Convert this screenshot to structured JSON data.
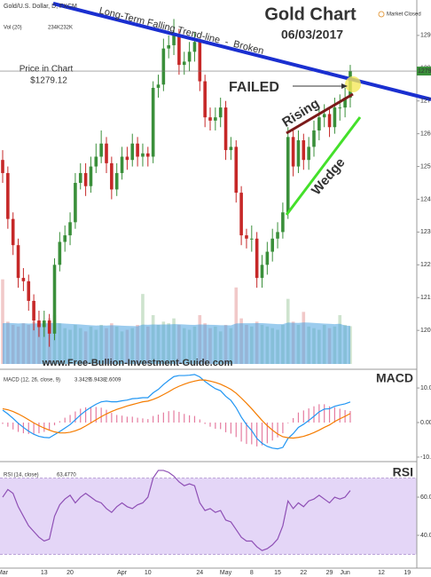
{
  "chart_data": [
    {
      "type": "candlestick",
      "title": "Gold/U.S. Dollar, D, FXCM",
      "status": "Market Closed",
      "categories": [
        "Mar",
        null,
        null,
        null,
        null,
        null,
        null,
        null,
        "13",
        null,
        null,
        null,
        null,
        "20",
        null,
        null,
        null,
        null,
        null,
        null,
        null,
        null,
        null,
        "Apr",
        null,
        null,
        null,
        null,
        "10",
        null,
        null,
        null,
        null,
        null,
        null,
        null,
        null,
        null,
        "24",
        null,
        null,
        null,
        null,
        "May",
        null,
        null,
        null,
        null,
        "8",
        null,
        null,
        null,
        null,
        "15",
        null,
        null,
        null,
        null,
        "22",
        null,
        null,
        null,
        null,
        "29",
        null,
        null,
        "Jun",
        null,
        null,
        null,
        null,
        null,
        null,
        "12",
        null,
        null,
        null,
        null,
        "19",
        null
      ],
      "open": [
        1252,
        1248,
        1234,
        1226,
        1216,
        1215,
        1209,
        1203,
        1201,
        1203,
        1199,
        1220,
        1227,
        1229,
        1233,
        1245,
        1248,
        1244,
        1250,
        1253,
        1257,
        1251,
        1243,
        1248,
        1253,
        1252,
        1257,
        1253,
        1254,
        1253,
        1274,
        1275,
        1286,
        1287,
        1290,
        1281,
        1282,
        1285,
        1288,
        1276,
        1265,
        1264,
        1265,
        1268,
        1255,
        1256,
        1242,
        1229,
        1228,
        1228,
        1216,
        1220,
        1224,
        1228,
        1230,
        1236,
        1259,
        1250,
        1258,
        1252,
        1256,
        1261,
        1265,
        1266,
        1262,
        1268,
        1268,
        1271,
        null,
        null,
        null,
        null,
        null,
        null,
        null,
        null,
        null,
        null,
        null,
        null
      ],
      "high": [
        1255,
        1250,
        1236,
        1228,
        1219,
        1217,
        1211,
        1206,
        1206,
        1205,
        1222,
        1230,
        1232,
        1236,
        1248,
        1251,
        1251,
        1253,
        1257,
        1261,
        1259,
        1253,
        1251,
        1256,
        1256,
        1260,
        1259,
        1257,
        1256,
        1276,
        1278,
        1289,
        1290,
        1295,
        1292,
        1285,
        1288,
        1291,
        1289,
        1278,
        1268,
        1268,
        1271,
        1270,
        1259,
        1258,
        1244,
        1231,
        1232,
        1230,
        1223,
        1227,
        1231,
        1233,
        1239,
        1262,
        1261,
        1261,
        1260,
        1259,
        1264,
        1268,
        1269,
        1268,
        1271,
        1272,
        1274,
        1281,
        null,
        null,
        null,
        null,
        null,
        null,
        null,
        null,
        null,
        null,
        null,
        null
      ],
      "low": [
        1245,
        1231,
        1223,
        1213,
        1212,
        1206,
        1200,
        1198,
        1198,
        1195,
        1197,
        1218,
        1224,
        1226,
        1231,
        1243,
        1241,
        1242,
        1248,
        1251,
        1248,
        1240,
        1241,
        1246,
        1249,
        1250,
        1250,
        1250,
        1250,
        1251,
        1271,
        1273,
        1283,
        1284,
        1278,
        1278,
        1279,
        1282,
        1273,
        1262,
        1261,
        1261,
        1262,
        1252,
        1252,
        1239,
        1226,
        1225,
        1224,
        1213,
        1213,
        1217,
        1221,
        1225,
        1228,
        1234,
        1247,
        1248,
        1249,
        1249,
        1253,
        1258,
        1262,
        1259,
        1260,
        1264,
        1265,
        1268,
        null,
        null,
        null,
        null,
        null,
        null,
        null,
        null,
        null,
        null,
        null,
        null
      ],
      "close": [
        1248,
        1234,
        1226,
        1216,
        1215,
        1209,
        1203,
        1201,
        1203,
        1199,
        1220,
        1227,
        1229,
        1233,
        1245,
        1248,
        1244,
        1250,
        1253,
        1257,
        1251,
        1243,
        1248,
        1253,
        1252,
        1257,
        1253,
        1254,
        1253,
        1274,
        1275,
        1286,
        1287,
        1290,
        1281,
        1282,
        1285,
        1288,
        1276,
        1265,
        1264,
        1265,
        1268,
        1255,
        1256,
        1242,
        1229,
        1228,
        1228,
        1216,
        1220,
        1224,
        1228,
        1230,
        1236,
        1259,
        1250,
        1258,
        1252,
        1256,
        1261,
        1265,
        1266,
        1262,
        1268,
        1268,
        1271,
        1279.12,
        null,
        null,
        null,
        null,
        null,
        null,
        null,
        null,
        null,
        null,
        null,
        null
      ],
      "up_color": "#3a8f3a",
      "down_color": "#c62828",
      "ylim": [
        1188.4,
        1300.8
      ],
      "yticks": [
        {
          "value": 1290,
          "label": "1290.00"
        },
        {
          "value": 1280,
          "label": "1280.00"
        },
        {
          "value": 1270,
          "label": "1270.00"
        },
        {
          "value": 1260,
          "label": "1260.00"
        },
        {
          "value": 1250,
          "label": "1250.00"
        },
        {
          "value": 1240,
          "label": "1240.00"
        },
        {
          "value": 1230,
          "label": "1230.00"
        },
        {
          "value": 1220,
          "label": "1220.00"
        },
        {
          "value": 1210,
          "label": "1210.00"
        },
        {
          "value": 1200,
          "label": "1200.00"
        }
      ],
      "grid": false,
      "last_price": 1279.12,
      "last_price_color": "#3a8f3a",
      "volume": [
        520,
        260,
        240,
        230,
        250,
        240,
        260,
        250,
        230,
        280,
        300,
        250,
        220,
        210,
        240,
        220,
        200,
        230,
        210,
        240,
        220,
        250,
        230,
        200,
        210,
        220,
        240,
        430,
        230,
        300,
        240,
        260,
        250,
        280,
        240,
        220,
        210,
        230,
        300,
        250,
        220,
        230,
        200,
        240,
        220,
        470,
        280,
        240,
        230,
        260,
        240,
        230,
        220,
        210,
        240,
        400,
        260,
        240,
        320,
        230,
        220,
        210,
        240,
        220,
        230,
        300,
        240,
        232,
        null,
        null,
        null,
        null,
        null,
        null,
        null,
        null,
        null,
        null,
        null,
        null
      ],
      "volume_ma": [
        250,
        252,
        251,
        249,
        250,
        248,
        249,
        250,
        249,
        251,
        252,
        250,
        248,
        246,
        245,
        243,
        240,
        238,
        236,
        237,
        236,
        238,
        237,
        235,
        234,
        233,
        232,
        242,
        241,
        243,
        242,
        243,
        243,
        245,
        244,
        243,
        241,
        240,
        243,
        242,
        241,
        240,
        238,
        238,
        237,
        249,
        250,
        250,
        250,
        251,
        251,
        249,
        247,
        245,
        245,
        254,
        253,
        252,
        255,
        254,
        252,
        250,
        248,
        247,
        245,
        247,
        236,
        234,
        null,
        null,
        null,
        null,
        null,
        null,
        null,
        null,
        null,
        null,
        null,
        null
      ],
      "volume_lim": [
        0,
        600
      ],
      "volume_ma_color": "#4aa3e0",
      "volume_legend": {
        "name": "Vol (20)",
        "values": [
          234,
          232
        ],
        "value_labels": [
          "234K",
          "232K"
        ]
      },
      "annotations": {
        "chart_title": "Gold Chart",
        "date": "06/03/2017",
        "trend_line": "Long-Term Falling Trend-line  -  Broken",
        "failed": "FAILED",
        "rising": "Rising",
        "wedge": "Wedge",
        "price_note": "Price in Chart",
        "price_note_value": "$1279.12",
        "website": "www.Free-Bullion-Investment-Guide.com"
      }
    },
    {
      "type": "line",
      "name": "MACD (12, 26, close, 9)",
      "panel_label": "MACD",
      "legend_values": [
        3.3429,
        5.9438,
        2.6009
      ],
      "series": [
        {
          "name": "Histogram",
          "style": "histogram",
          "color": "#e57ca0",
          "values": [
            -0.4,
            -1.2,
            -2.0,
            -2.7,
            -3.1,
            -3.3,
            -3.3,
            -3.1,
            -2.7,
            -2.2,
            -0.8,
            0.4,
            1.4,
            2.2,
            3.2,
            4.0,
            4.4,
            4.5,
            4.5,
            4.3,
            3.7,
            2.8,
            2.2,
            2.0,
            1.7,
            1.7,
            1.4,
            1.2,
            1.0,
            1.9,
            2.3,
            2.9,
            3.3,
            3.5,
            3.1,
            2.5,
            2.1,
            1.9,
            0.9,
            -0.4,
            -1.2,
            -1.8,
            -1.9,
            -2.8,
            -3.2,
            -4.2,
            -5.5,
            -6.2,
            -6.3,
            -6.9,
            -6.6,
            -6.0,
            -5.2,
            -4.3,
            -3.1,
            -0.2,
            1.3,
            2.9,
            3.5,
            4.1,
            4.7,
            5.3,
            5.3,
            4.7,
            4.4,
            4.0,
            3.6,
            3.3429,
            null,
            null,
            null,
            null,
            null,
            null,
            null,
            null,
            null,
            null,
            null,
            null
          ]
        },
        {
          "name": "MACD",
          "style": "line",
          "color": "#2196f3",
          "values": [
            3.6,
            2.5,
            1.2,
            -0.2,
            -1.4,
            -2.5,
            -3.4,
            -4.0,
            -4.3,
            -4.4,
            -3.5,
            -2.6,
            -1.6,
            -0.6,
            0.8,
            2.2,
            3.4,
            4.4,
            5.3,
            6.0,
            6.2,
            6.0,
            6.0,
            6.3,
            6.5,
            6.9,
            7.0,
            7.2,
            7.2,
            8.6,
            9.6,
            11.0,
            12.2,
            13.3,
            13.6,
            13.6,
            13.7,
            13.9,
            13.2,
            11.9,
            10.8,
            9.8,
            9.2,
            7.6,
            6.4,
            4.3,
            1.6,
            -0.6,
            -2.3,
            -4.6,
            -6.0,
            -6.9,
            -7.4,
            -7.6,
            -7.2,
            -4.6,
            -3.2,
            -1.4,
            -0.5,
            0.6,
            1.8,
            3.1,
            3.9,
            4.0,
            4.7,
            5.1,
            5.4,
            5.9438,
            null,
            null,
            null,
            null,
            null,
            null,
            null,
            null,
            null,
            null,
            null,
            null
          ]
        },
        {
          "name": "Signal",
          "style": "line",
          "color": "#f57c00",
          "values": [
            4.0,
            3.7,
            3.2,
            2.5,
            1.7,
            0.8,
            -0.1,
            -0.9,
            -1.6,
            -2.2,
            -2.7,
            -3.0,
            -3.0,
            -2.8,
            -2.4,
            -1.8,
            -1.0,
            -0.1,
            0.8,
            1.7,
            2.5,
            3.2,
            3.8,
            4.3,
            4.8,
            5.2,
            5.6,
            6.0,
            6.2,
            6.7,
            7.3,
            8.1,
            8.9,
            9.8,
            10.5,
            11.1,
            11.6,
            12.0,
            12.3,
            12.3,
            12.0,
            11.6,
            11.1,
            10.4,
            9.6,
            8.5,
            7.1,
            5.6,
            4.0,
            2.3,
            0.6,
            -0.9,
            -2.2,
            -3.3,
            -4.1,
            -4.4,
            -4.5,
            -4.3,
            -4.0,
            -3.5,
            -2.9,
            -2.2,
            -1.4,
            -0.7,
            0.3,
            1.1,
            1.8,
            2.6009,
            null,
            null,
            null,
            null,
            null,
            null,
            null,
            null,
            null,
            null,
            null,
            null
          ]
        }
      ],
      "ylim": [
        -11.3,
        14.9
      ],
      "yticks": [
        {
          "value": 10,
          "label": "10.0000"
        },
        {
          "value": 0,
          "label": "0.0000"
        },
        {
          "value": -10,
          "label": "-10.0000"
        }
      ],
      "grid": false
    },
    {
      "type": "line",
      "name": "RSI (14, close)",
      "panel_label": "RSI",
      "legend_value": {
        "value": 63.477,
        "label": "63.4770"
      },
      "band": [
        30,
        70
      ],
      "band_color": "#e4d6f7",
      "series": [
        {
          "name": "RSI",
          "style": "line",
          "color": "#8e4fb5",
          "values": [
            60,
            64,
            62,
            55,
            50,
            45,
            42,
            39,
            37,
            38,
            50,
            56,
            59,
            61,
            57,
            60,
            62,
            60,
            58,
            57,
            54,
            52,
            55,
            57,
            55,
            54,
            56,
            57,
            60,
            70,
            74,
            74,
            73,
            71,
            68,
            66,
            67,
            66,
            57,
            53,
            54,
            52,
            53,
            48,
            47,
            43,
            39,
            37,
            37,
            34,
            32,
            33,
            35,
            38,
            45,
            58,
            54,
            57,
            55,
            58,
            59,
            61,
            59,
            57,
            60,
            59,
            60,
            63.477,
            null,
            null,
            null,
            null,
            null,
            null,
            null,
            null,
            null,
            null,
            null,
            null
          ]
        }
      ],
      "ylim": [
        22.8,
        77.7
      ],
      "yticks": [
        {
          "value": 60,
          "label": "60.0000"
        },
        {
          "value": 40,
          "label": "40.0000"
        }
      ],
      "grid": false
    }
  ]
}
